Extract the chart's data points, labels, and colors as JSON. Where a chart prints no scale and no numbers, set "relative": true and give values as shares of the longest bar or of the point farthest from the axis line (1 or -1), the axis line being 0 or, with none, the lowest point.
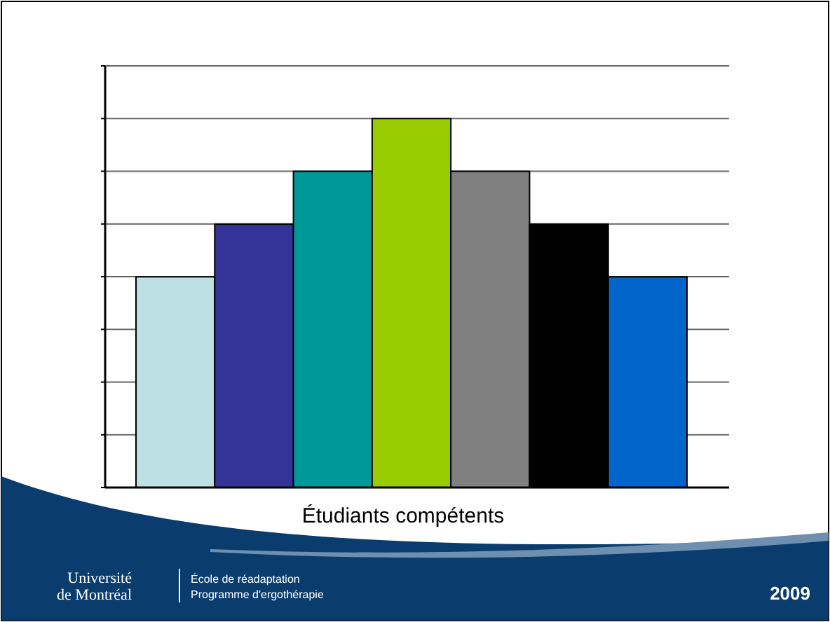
{
  "chart_data": {
    "type": "bar",
    "relative": true,
    "xlabel": "Étudiants compétents",
    "categories": [
      null,
      null,
      null,
      null,
      null,
      null,
      null
    ],
    "values": [
      0.571,
      0.714,
      0.857,
      1,
      0.857,
      0.714,
      0.571
    ],
    "colors": [
      "#bce0e3",
      "#333399",
      "#009999",
      "#99cc00",
      "#808080",
      "#000000",
      "#0066cc"
    ],
    "grid": true,
    "annotations": [
      "Université de Montréal",
      "École de réadaptation",
      "Programme d'ergothérapie",
      "2009"
    ]
  }
}
